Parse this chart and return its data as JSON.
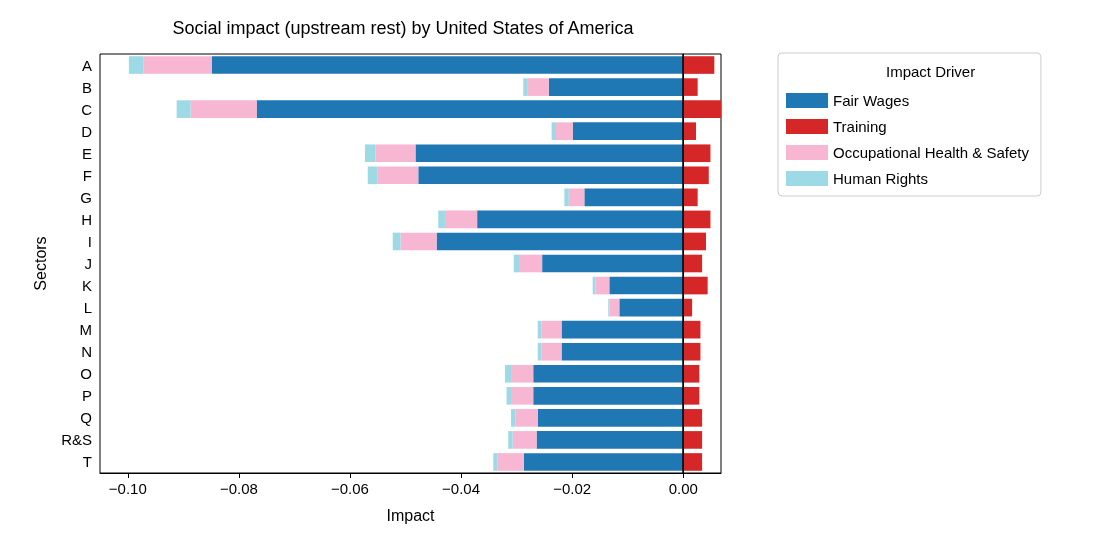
{
  "chart_data": {
    "type": "bar",
    "orientation": "horizontal",
    "stacked": true,
    "title": "Social impact (upstream rest) by United States of America",
    "xlabel": "Impact",
    "ylabel": "Sectors",
    "legend_title": "Impact Driver",
    "legend": "top right",
    "grid": false,
    "categories": [
      "A",
      "B",
      "C",
      "D",
      "E",
      "F",
      "G",
      "H",
      "I",
      "J",
      "K",
      "L",
      "M",
      "N",
      "O",
      "P",
      "Q",
      "R&S",
      "T"
    ],
    "xlim": [
      -0.105,
      0.0068
    ],
    "xticks": [
      {
        "value": -0.1,
        "label": "−0.10"
      },
      {
        "value": -0.08,
        "label": "−0.08"
      },
      {
        "value": -0.06,
        "label": "−0.06"
      },
      {
        "value": -0.04,
        "label": "−0.04"
      },
      {
        "value": -0.02,
        "label": "−0.02"
      },
      {
        "value": 0,
        "label": "0.00"
      }
    ],
    "ref_lines": [
      {
        "axis": "x",
        "value": 0,
        "color": "#000000"
      }
    ],
    "series": [
      {
        "name": "Fair Wages",
        "color": "#1f77b4",
        "values": [
          -0.0849,
          -0.0242,
          -0.0768,
          -0.0199,
          -0.0482,
          -0.0477,
          -0.0178,
          -0.0371,
          -0.0444,
          -0.0254,
          -0.0133,
          -0.0115,
          -0.0219,
          -0.0219,
          -0.027,
          -0.027,
          -0.0262,
          -0.0264,
          -0.0287
        ]
      },
      {
        "name": "Training",
        "color": "#d62728",
        "values": [
          0.0056,
          0.0026,
          0.0068,
          0.0023,
          0.0049,
          0.0046,
          0.0026,
          0.0049,
          0.0041,
          0.0034,
          0.0044,
          0.0016,
          0.0031,
          0.0031,
          0.0029,
          0.0029,
          0.0034,
          0.0034,
          0.0034
        ]
      },
      {
        "name": "Occupational Health & Safety",
        "color": "#f7b6d2",
        "values": [
          -0.0123,
          -0.0039,
          -0.0119,
          -0.003,
          -0.0072,
          -0.0073,
          -0.0028,
          -0.0058,
          -0.0065,
          -0.004,
          -0.0025,
          -0.0018,
          -0.0036,
          -0.0036,
          -0.004,
          -0.004,
          -0.004,
          -0.0043,
          -0.0047
        ]
      },
      {
        "name": "Human Rights",
        "color": "#9edae5",
        "values": [
          -0.0026,
          -0.0007,
          -0.0025,
          -0.0008,
          -0.0019,
          -0.0018,
          -0.0008,
          -0.0012,
          -0.0014,
          -0.0011,
          -0.0005,
          -0.0002,
          -0.0007,
          -0.0007,
          -0.0011,
          -0.0008,
          -0.0008,
          -0.0008,
          -0.0008
        ]
      }
    ]
  }
}
